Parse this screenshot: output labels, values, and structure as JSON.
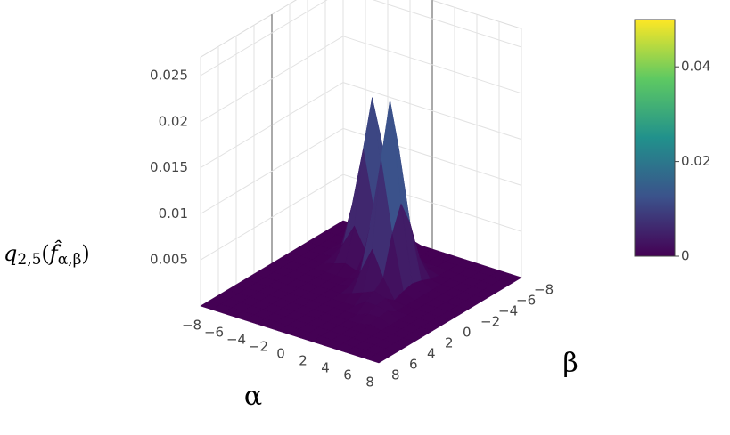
{
  "chart_data": {
    "type": "surface",
    "x_title": "α",
    "y_title": "β",
    "z_title_parts": [
      "q",
      "2,5",
      "(",
      "f̂",
      "α,β",
      ")"
    ],
    "x": [
      -8,
      -7,
      -6,
      -5,
      -4,
      -3,
      -2,
      -1,
      0,
      1,
      2,
      3,
      4,
      5,
      6,
      7,
      8
    ],
    "y": [
      -8,
      -7,
      -6,
      -5,
      -4,
      -3,
      -2,
      -1,
      0,
      1,
      2,
      3,
      4,
      5,
      6,
      7,
      8
    ],
    "z": [
      [
        0,
        0,
        0,
        0,
        0.00034,
        0.00075,
        0.00034,
        0,
        0,
        0,
        0,
        0,
        0,
        0,
        0,
        0,
        0
      ],
      [
        0,
        0,
        0,
        0.00019,
        0.00194,
        0.00423,
        0.00194,
        0.00019,
        0,
        0,
        0,
        0,
        0,
        0,
        0,
        0,
        0
      ],
      [
        0,
        0,
        0,
        0.00053,
        0.00551,
        0.01202,
        0.00551,
        0.00053,
        0,
        0,
        0,
        0,
        0,
        0,
        0,
        0,
        0
      ],
      [
        0,
        0,
        0,
        0.00075,
        0.00779,
        0.017,
        0.00779,
        0.00075,
        0.0004,
        0.00088,
        0.0004,
        0,
        0,
        0,
        0,
        0,
        0
      ],
      [
        0,
        0,
        0,
        0.00053,
        0.00551,
        0.01202,
        0.00551,
        0.00075,
        0.00228,
        0.00498,
        0.00228,
        0.00022,
        0,
        0,
        0,
        0,
        0
      ],
      [
        0,
        0,
        0,
        0.00019,
        0.00194,
        0.00423,
        0.00194,
        0.00081,
        0.00648,
        0.01414,
        0.00648,
        0.00062,
        0,
        0,
        0,
        0,
        0
      ],
      [
        0,
        0,
        0,
        0,
        0.00034,
        0.00075,
        0.00034,
        0.00088,
        0.00916,
        0.02,
        0.00916,
        0.00088,
        0,
        0,
        0,
        0,
        0
      ],
      [
        0,
        0,
        0,
        0,
        0,
        0,
        0,
        0.00062,
        0.00648,
        0.01414,
        0.00648,
        0.00062,
        0,
        0,
        0,
        0,
        0
      ],
      [
        0,
        0,
        0,
        0,
        0,
        0,
        0,
        0.00022,
        0.00228,
        0.00498,
        0.00228,
        0.00022,
        0,
        0,
        0,
        0,
        0
      ],
      [
        0,
        0,
        0,
        0,
        0,
        0,
        0,
        0,
        0.0004,
        0.00088,
        0.0014,
        0.001,
        0,
        0,
        0,
        0,
        0
      ],
      [
        0,
        0,
        0,
        0,
        0,
        0,
        0,
        0,
        0,
        0,
        0.0008,
        0.0008,
        0.0006,
        0,
        0,
        0,
        0
      ],
      [
        0,
        0,
        0,
        0,
        0,
        0,
        0,
        0,
        0,
        0,
        0,
        0.0005,
        0.0005,
        0,
        0,
        0,
        0
      ],
      [
        0,
        0,
        0,
        0,
        0,
        0,
        0,
        0,
        0,
        0,
        0,
        0,
        0.0003,
        0,
        0,
        0,
        0
      ],
      [
        0,
        0,
        0,
        0,
        0,
        0,
        0,
        0,
        0,
        0,
        0,
        0,
        0,
        0,
        0,
        0,
        0
      ],
      [
        0,
        0,
        0,
        0,
        0,
        0,
        0,
        0,
        0,
        0,
        0,
        0,
        0,
        0,
        0,
        0,
        0
      ],
      [
        0,
        0,
        0,
        0,
        0,
        0,
        0,
        0,
        0,
        0,
        0,
        0,
        0,
        0,
        0,
        0,
        0
      ],
      [
        0,
        0,
        0,
        0,
        0,
        0,
        0,
        0,
        0,
        0,
        0,
        0,
        0,
        0,
        0,
        0,
        0
      ]
    ],
    "xlim": [
      -8,
      8
    ],
    "ylim": [
      -8,
      8
    ],
    "zlim": [
      0,
      0.027
    ],
    "xticks": [
      {
        "value": -8,
        "label": "−8"
      },
      {
        "value": -6,
        "label": "−6"
      },
      {
        "value": -4,
        "label": "−4"
      },
      {
        "value": -2,
        "label": "−2"
      },
      0,
      2,
      4,
      6,
      8
    ],
    "yticks": [
      {
        "value": -8,
        "label": "−8"
      },
      {
        "value": -6,
        "label": "−6"
      },
      {
        "value": -4,
        "label": "−4"
      },
      {
        "value": -2,
        "label": "−2"
      },
      0,
      2,
      4,
      6,
      8
    ],
    "zticks": [
      0.005,
      0.01,
      0.015,
      0.02,
      0.025
    ],
    "colorscale": "Viridis",
    "colorbar": {
      "lim": [
        0,
        0.05
      ],
      "ticks": [
        0,
        0.02,
        0.04
      ]
    },
    "grid": true
  }
}
